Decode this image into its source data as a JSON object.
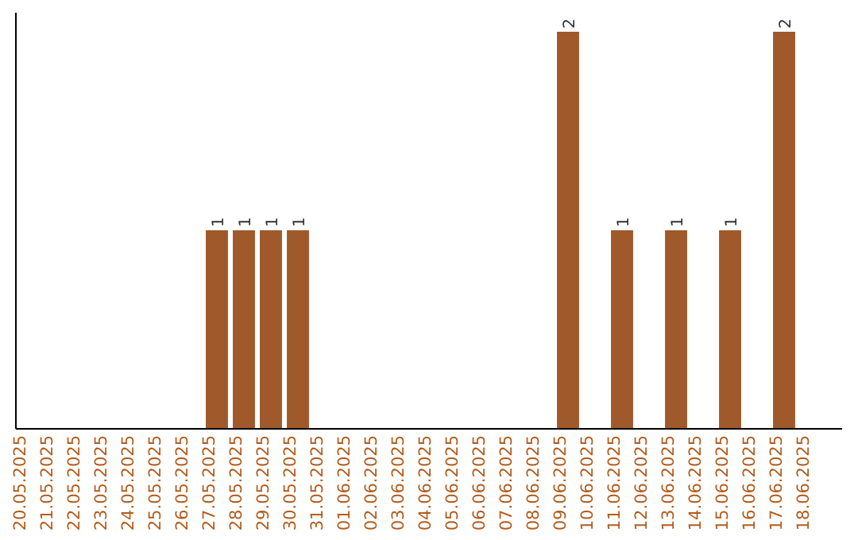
{
  "chart_data": {
    "type": "bar",
    "categories": [
      "20.05.2025",
      "21.05.2025",
      "22.05.2025",
      "23.05.2025",
      "24.05.2025",
      "25.05.2025",
      "26.05.2025",
      "27.05.2025",
      "28.05.2025",
      "29.05.2025",
      "30.05.2025",
      "31.05.2025",
      "01.06.2025",
      "02.06.2025",
      "03.06.2025",
      "04.06.2025",
      "05.06.2025",
      "06.06.2025",
      "07.06.2025",
      "08.06.2025",
      "09.06.2025",
      "10.06.2025",
      "11.06.2025",
      "12.06.2025",
      "13.06.2025",
      "14.06.2025",
      "15.06.2025",
      "16.06.2025",
      "17.06.2025",
      "18.06.2025"
    ],
    "values": [
      0,
      0,
      0,
      0,
      0,
      0,
      0,
      1,
      1,
      1,
      1,
      0,
      0,
      0,
      0,
      0,
      0,
      0,
      0,
      0,
      2,
      0,
      1,
      0,
      1,
      0,
      1,
      0,
      2,
      0
    ],
    "value_labels": [
      null,
      null,
      null,
      null,
      null,
      null,
      null,
      "1",
      "1",
      "1",
      "1",
      null,
      null,
      null,
      null,
      null,
      null,
      null,
      null,
      null,
      "2",
      null,
      "1",
      null,
      "1",
      null,
      "1",
      null,
      "2",
      null
    ],
    "color": "#a0592a",
    "ylim": [
      0,
      2
    ]
  }
}
